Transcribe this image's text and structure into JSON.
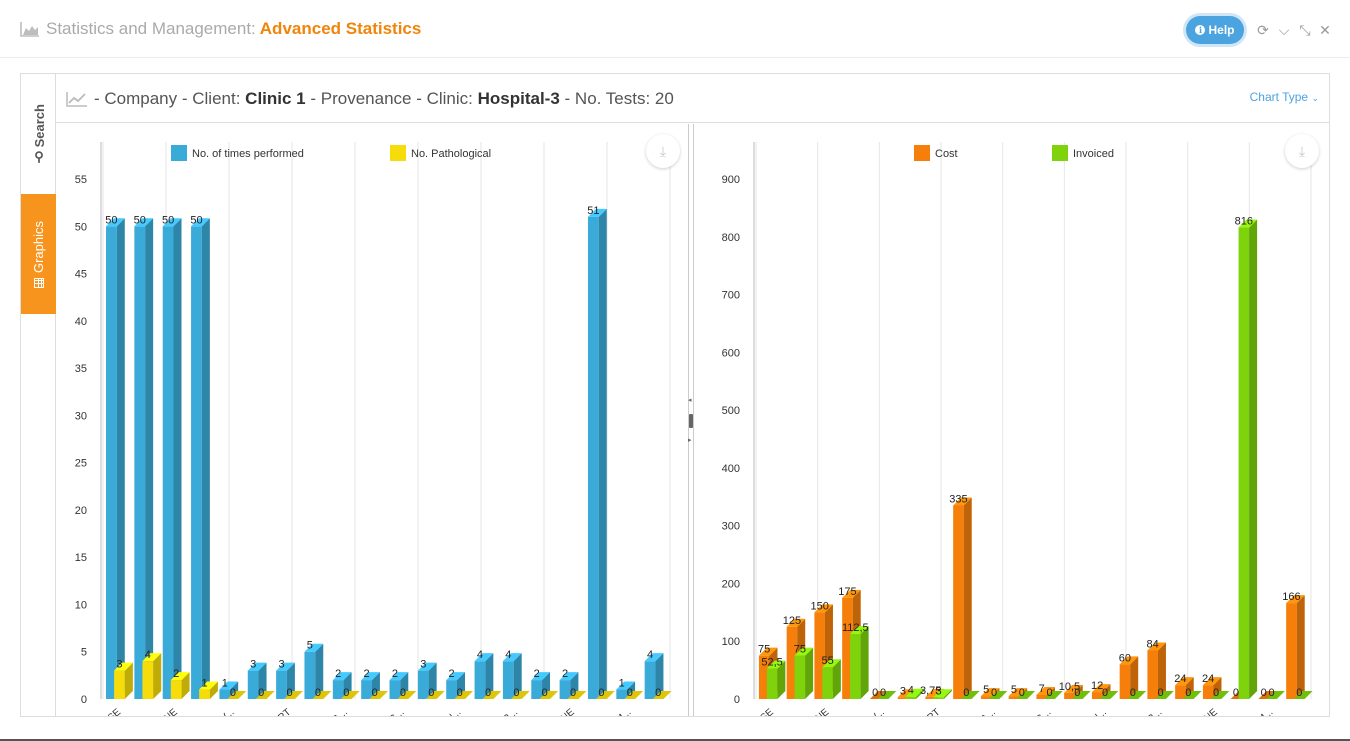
{
  "header": {
    "title_prefix": "Statistics and Management:",
    "title_accent": "Advanced Statistics",
    "help_label": "Help"
  },
  "side_tabs": {
    "search_label": "Search",
    "graphics_label": "Graphics"
  },
  "chart_header": {
    "part1": "- Company - Client:",
    "client": "Clinic 1",
    "part2": "- Provenance - Clinic:",
    "clinic": "Hospital-3",
    "part3": "- No. Tests: 20",
    "chart_type_label": "Chart Type"
  },
  "colors": {
    "accent": "#f0850a",
    "tab_active": "#f7941d",
    "help": "#4ba3e0",
    "blue_series": "#3aabd8",
    "yellow_series": "#f5dc0a",
    "orange_series": "#f57f0a",
    "green_series": "#7ed30c"
  },
  "chart_data": [
    {
      "type": "bar",
      "categories": [
        "GLUCOSE",
        "",
        "CREATININE",
        "",
        "GLUCOSE CURV...",
        "",
        "ALT/GPT",
        "",
        "ANTI-RUBELLA...",
        "",
        "ANTI-CYTOMEG...",
        "",
        "ANTI-EPSTEIN...",
        "",
        "BORRELIA BUR...",
        "",
        "METHADONE",
        "",
        "BLEEDING TIM...",
        ""
      ],
      "series": [
        {
          "name": "No. of times performed",
          "values": [
            50,
            50,
            50,
            50,
            1,
            3,
            3,
            5,
            2,
            2,
            2,
            3,
            2,
            4,
            4,
            2,
            2,
            51,
            1,
            4
          ],
          "labels": [
            "50",
            "50",
            "50",
            "50",
            "1",
            "3",
            "3",
            "5",
            "2",
            "2",
            "2",
            "3",
            "2",
            "4",
            "4",
            "2",
            "2",
            "51",
            "1",
            "4"
          ]
        },
        {
          "name": "No. Pathological",
          "values": [
            3,
            4,
            2,
            1,
            0,
            0,
            0,
            0,
            0,
            0,
            0,
            0,
            0,
            0,
            0,
            0,
            0,
            0,
            0,
            0
          ],
          "labels": [
            "3",
            "4",
            "2",
            "1",
            "0",
            "0",
            "0",
            "0",
            "0",
            "0",
            "0",
            "0",
            "0",
            "0",
            "0",
            "0",
            "0",
            "0",
            "0",
            "0"
          ]
        }
      ],
      "yticks": [
        "0",
        "5",
        "10",
        "15",
        "20",
        "25",
        "30",
        "35",
        "40",
        "45",
        "50",
        "55"
      ],
      "ylim": [
        0,
        55
      ],
      "legend": "top",
      "grid": "vertical"
    },
    {
      "type": "bar",
      "categories": [
        "GLUCOSE",
        "",
        "CREATININE",
        "",
        "GLUCOSE CURV...",
        "",
        "ALT/GPT",
        "",
        "ANTI-RUBELLA...",
        "",
        "ANTI-CYTOMEG...",
        "",
        "ANTI-EPSTEIN...",
        "",
        "BORRELIA BUR...",
        "",
        "METHADONE",
        "",
        "BLEEDING TIM...",
        ""
      ],
      "series": [
        {
          "name": "Cost",
          "values": [
            75,
            125,
            150,
            175,
            0,
            3,
            3.75,
            335,
            5,
            5,
            7,
            10.5,
            12,
            60,
            84,
            24,
            24,
            0,
            0,
            166
          ],
          "labels": [
            "75",
            "125",
            "150",
            "175",
            "0",
            "3",
            "3,75",
            "335",
            "5",
            "5",
            "7",
            "10,5",
            "12",
            "60",
            "84",
            "24",
            "24",
            "0",
            "0",
            "166"
          ]
        },
        {
          "name": "Invoiced",
          "values": [
            52.5,
            75,
            55,
            112.5,
            0,
            4,
            3,
            0,
            0,
            0,
            0,
            0,
            0,
            0,
            0,
            0,
            0,
            816,
            0,
            0
          ],
          "labels": [
            "52,5",
            "75",
            "55",
            "112,5",
            "0",
            "4",
            "3",
            "0",
            "0",
            "0",
            "0",
            "0",
            "0",
            "0",
            "0",
            "0",
            "0",
            "816",
            "0",
            "0"
          ]
        }
      ],
      "yticks": [
        "0",
        "100",
        "200",
        "300",
        "400",
        "500",
        "600",
        "700",
        "800",
        "900"
      ],
      "ylim": [
        0,
        900
      ],
      "legend": "top",
      "grid": "vertical"
    }
  ]
}
